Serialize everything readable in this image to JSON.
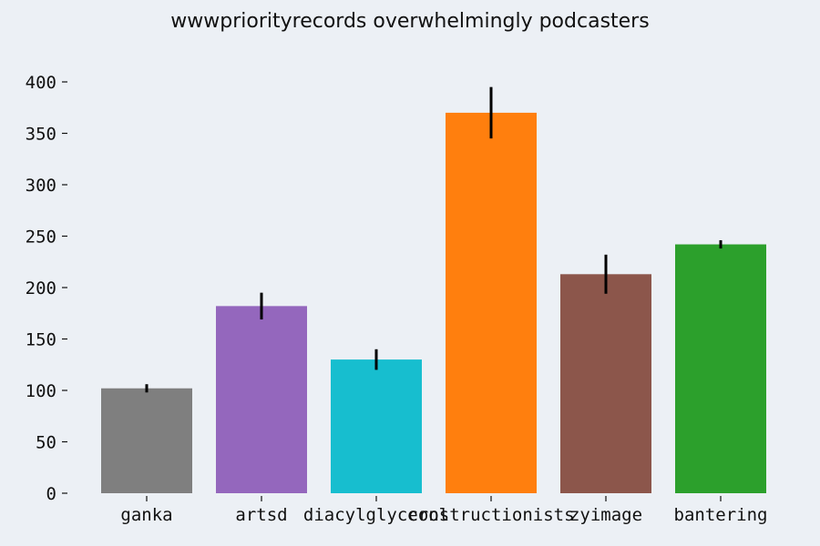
{
  "chart_data": {
    "type": "bar",
    "title": "wwwpriorityrecords overwhelmingly podcasters",
    "xlabel": "",
    "ylabel": "",
    "categories": [
      "ganka",
      "artsd",
      "diacylglycerol",
      "constructionists",
      "zyimage",
      "bantering"
    ],
    "values": [
      102,
      182,
      130,
      370,
      213,
      242
    ],
    "error": [
      4,
      13,
      10,
      25,
      19,
      4
    ],
    "colors": [
      "#7F7F7F",
      "#9467BD",
      "#17BECF",
      "#FF7F0E",
      "#8C564B",
      "#2CA02C"
    ],
    "ylim": [
      0,
      400
    ],
    "yticks": [
      0,
      50,
      100,
      150,
      200,
      250,
      300,
      350,
      400
    ],
    "grid": false,
    "legend": "none"
  }
}
